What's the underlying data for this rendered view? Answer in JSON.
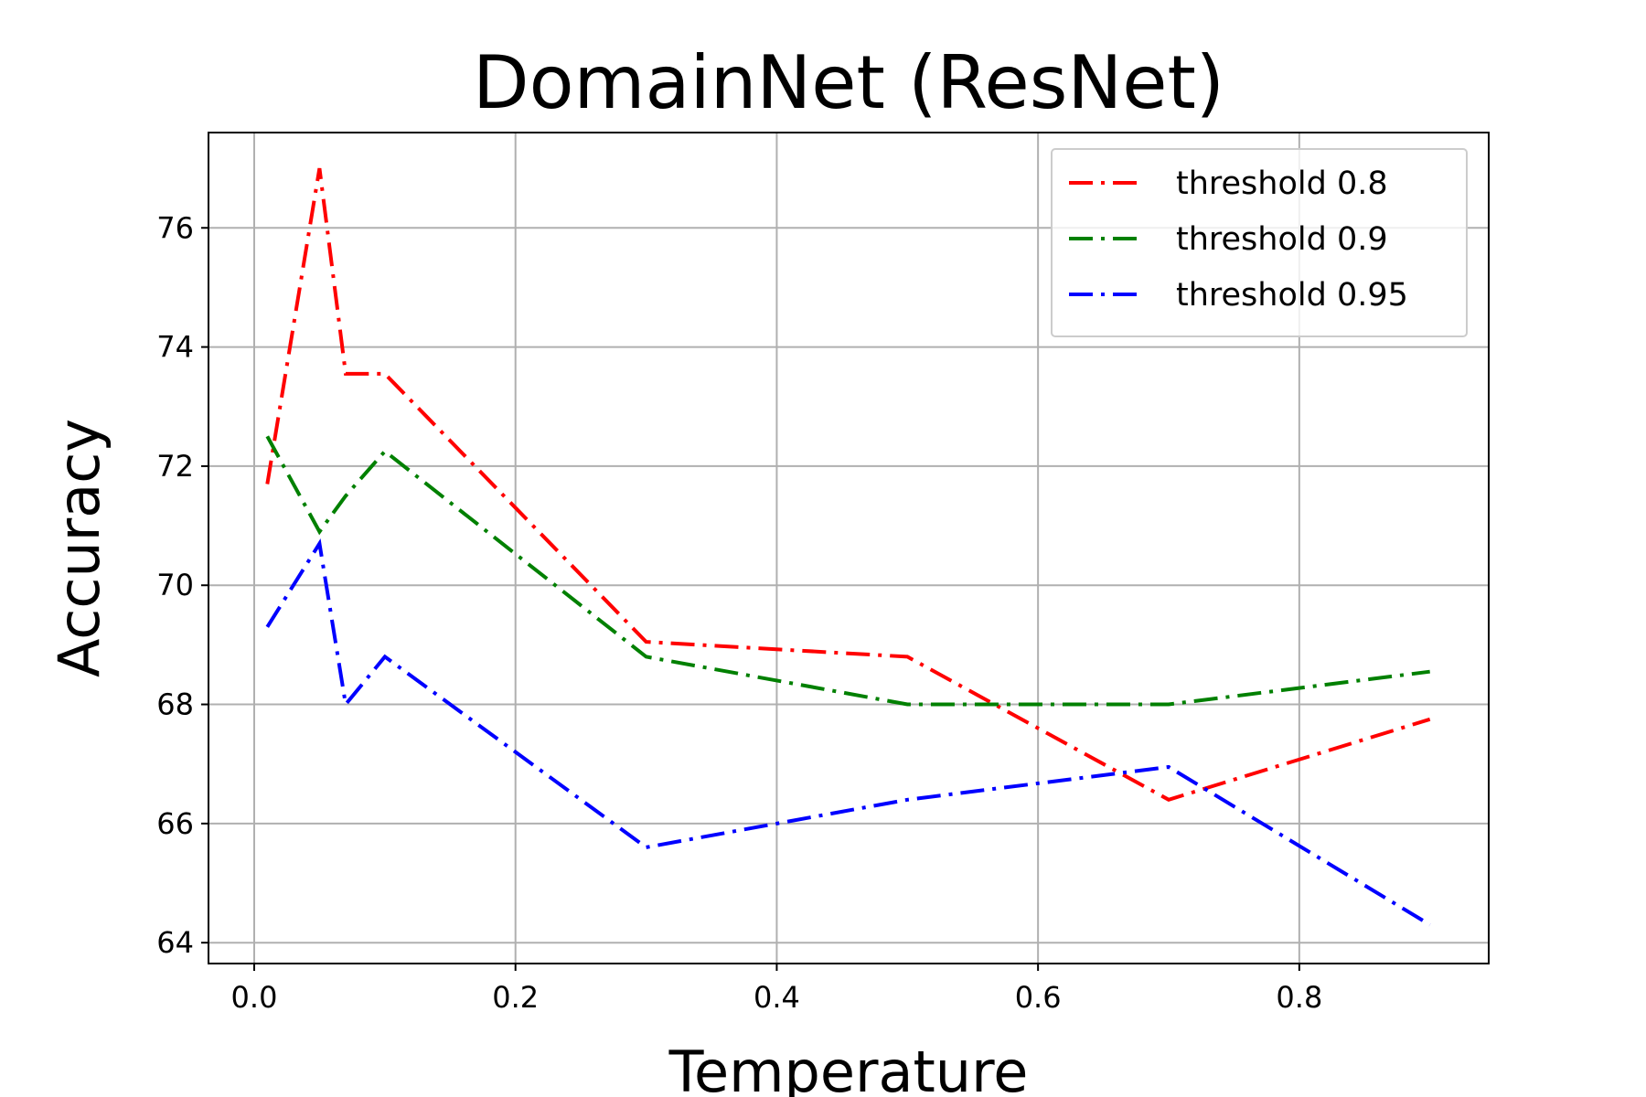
{
  "chart_data": {
    "type": "line",
    "title": "DomainNet (ResNet)",
    "xlabel": "Temperature",
    "ylabel": "Accuracy",
    "xlim": [
      -0.035,
      0.945
    ],
    "ylim": [
      63.65,
      77.6
    ],
    "xticks": [
      0.0,
      0.2,
      0.4,
      0.6,
      0.8
    ],
    "xtick_labels": [
      "0.0",
      "0.2",
      "0.4",
      "0.6",
      "0.8"
    ],
    "yticks": [
      64,
      66,
      68,
      70,
      72,
      74,
      76
    ],
    "ytick_labels": [
      "64",
      "66",
      "68",
      "70",
      "72",
      "74",
      "76"
    ],
    "grid": true,
    "legend_position": "top-right",
    "x": [
      0.01,
      0.05,
      0.07,
      0.1,
      0.3,
      0.5,
      0.7,
      0.9
    ],
    "series": [
      {
        "name": "threshold 0.8",
        "color": "#ff0000",
        "values": [
          71.7,
          77.0,
          73.55,
          73.55,
          69.05,
          68.8,
          66.4,
          67.75
        ]
      },
      {
        "name": "threshold 0.9",
        "color": "#008000",
        "values": [
          72.5,
          70.9,
          71.5,
          72.25,
          68.8,
          68.0,
          68.0,
          68.55
        ]
      },
      {
        "name": "threshold 0.95",
        "color": "#0000ff",
        "values": [
          69.3,
          70.7,
          68.0,
          68.8,
          65.6,
          66.4,
          66.95,
          64.3
        ]
      }
    ]
  }
}
